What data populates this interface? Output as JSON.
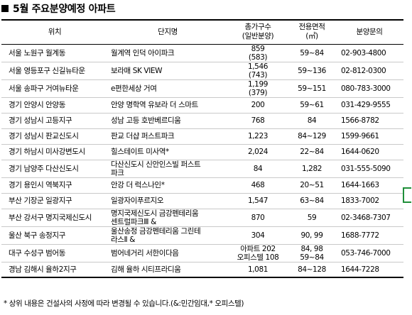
{
  "title": "5월 주요분양예정 아파트",
  "headers": {
    "location": "위치",
    "name": "단지명",
    "units": "총가구수\n(일반분양)",
    "area": "전용면적\n(㎡)",
    "contact": "분양문의"
  },
  "rows": [
    {
      "location": "서울 노원구 월계동",
      "name": "월계역 인덕 아이파크",
      "units": "859\n(583)",
      "area": "59~84",
      "contact": "02-903-4800"
    },
    {
      "location": "서울 영등포구 신길뉴타운",
      "name": "보라매 SK VIEW",
      "units": "1,546\n(743)",
      "area": "59~136",
      "contact": "02-812-0300"
    },
    {
      "location": "서울 송파구 거여뉴타운",
      "name": "e편한세상 거여",
      "units": "1,199\n(379)",
      "area": "59~151",
      "contact": "080-783-3000"
    },
    {
      "location": "경기 안양시 안양동",
      "name": "안양 명학역 유보라 더 스마트",
      "units": "200",
      "area": "59~61",
      "contact": "031-429-9555"
    },
    {
      "location": "경기 성남시 고등지구",
      "name": "성남 고등 호반베르디움",
      "units": "768",
      "area": "84",
      "contact": "1566-8782"
    },
    {
      "location": "경기 성남시 판교신도시",
      "name": "판교 더샵 퍼스트파크",
      "units": "1,223",
      "area": "84~129",
      "contact": "1599-9661"
    },
    {
      "location": "경기 하남시 미사강변도시",
      "name": "힐스테이트 미사역*",
      "units": "2,024",
      "area": "22~84",
      "contact": "1644-0620"
    },
    {
      "location": "경기 남양주 다산신도시",
      "name": "다산신도시 신안인스빌 퍼스트\n파크",
      "units": "84",
      "area": "1,282",
      "contact": "031-555-5090"
    },
    {
      "location": "경기 용인시 역북지구",
      "name": "안강 더 럭스나인*",
      "units": "468",
      "area": "20~51",
      "contact": "1644-1663"
    },
    {
      "location": "부산 기장군 일광지구",
      "name": "일광자이푸르지오",
      "units": "1,547",
      "area": "63~84",
      "contact": "1833-7002"
    },
    {
      "location": "부산 강서구 명지국제신도시",
      "name": "명지국제신도시 금강펜테리움\n센트럴파크Ⅲ &",
      "units": "870",
      "area": "59",
      "contact": "02-3468-7307"
    },
    {
      "location": "울산 북구 송정지구",
      "name": "울산송정 금강펜테리움 그린테\n라스Ⅱ &",
      "units": "304",
      "area": "90, 99",
      "contact": "1688-7772"
    },
    {
      "location": "대구 수성구 범어동",
      "name": "범어네거리 서한이다음",
      "units": "아파트 202\n오피스텔 108",
      "area": "84, 98\n59~84",
      "contact": "053-746-7000"
    },
    {
      "location": "경남 김해시 율하2지구",
      "name": "김해 율하 시티프라디움",
      "units": "1,081",
      "area": "84~128",
      "contact": "1644-7228"
    }
  ],
  "footnote": "* 상위 내용은 건설사의 사정에 따라 변경될 수 있습니다.(&:민간임대,* 오피스텔)"
}
